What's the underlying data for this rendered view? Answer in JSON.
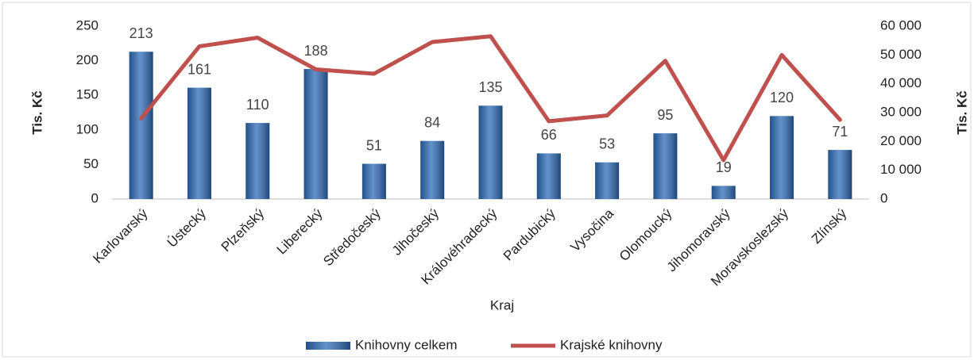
{
  "chart_data": {
    "type": "bar-line",
    "categories": [
      "Karlovarský",
      "Ústecký",
      "Plzeňský",
      "Liberecký",
      "Středočeský",
      "Jihočeský",
      "Královéhradecký",
      "Pardubický",
      "Vysočina",
      "Olomoucký",
      "Jihomoravský",
      "Moravskoslezský",
      "Zlínský"
    ],
    "series": [
      {
        "name": "Knihovny celkem",
        "type": "bar",
        "color": "#2f6cb8",
        "values": [
          213,
          161,
          110,
          188,
          51,
          84,
          135,
          66,
          53,
          95,
          19,
          120,
          71
        ]
      },
      {
        "name": "Krajské knihovny",
        "type": "line",
        "axis": "y2",
        "color": "#c0504d",
        "values": [
          28000,
          53000,
          56000,
          45000,
          43500,
          54500,
          56500,
          27000,
          29000,
          48000,
          13500,
          50000,
          27500
        ]
      }
    ],
    "xlabel": "Kraj",
    "ylabel": "Tis. Kč",
    "y2label": "Tis. Kč",
    "ylim": [
      0,
      250
    ],
    "yticks": [
      0,
      50,
      100,
      150,
      200,
      250
    ],
    "y2lim": [
      0,
      60000
    ],
    "y2ticks": [
      0,
      {
        "value": 10000,
        "label": "10 000"
      },
      {
        "value": 20000,
        "label": "20 000"
      },
      {
        "value": 30000,
        "label": "30 000"
      },
      {
        "value": 40000,
        "label": "40 000"
      },
      {
        "value": 50000,
        "label": "50 000"
      },
      {
        "value": 60000,
        "label": "60 000"
      }
    ],
    "legend": "bottom"
  }
}
